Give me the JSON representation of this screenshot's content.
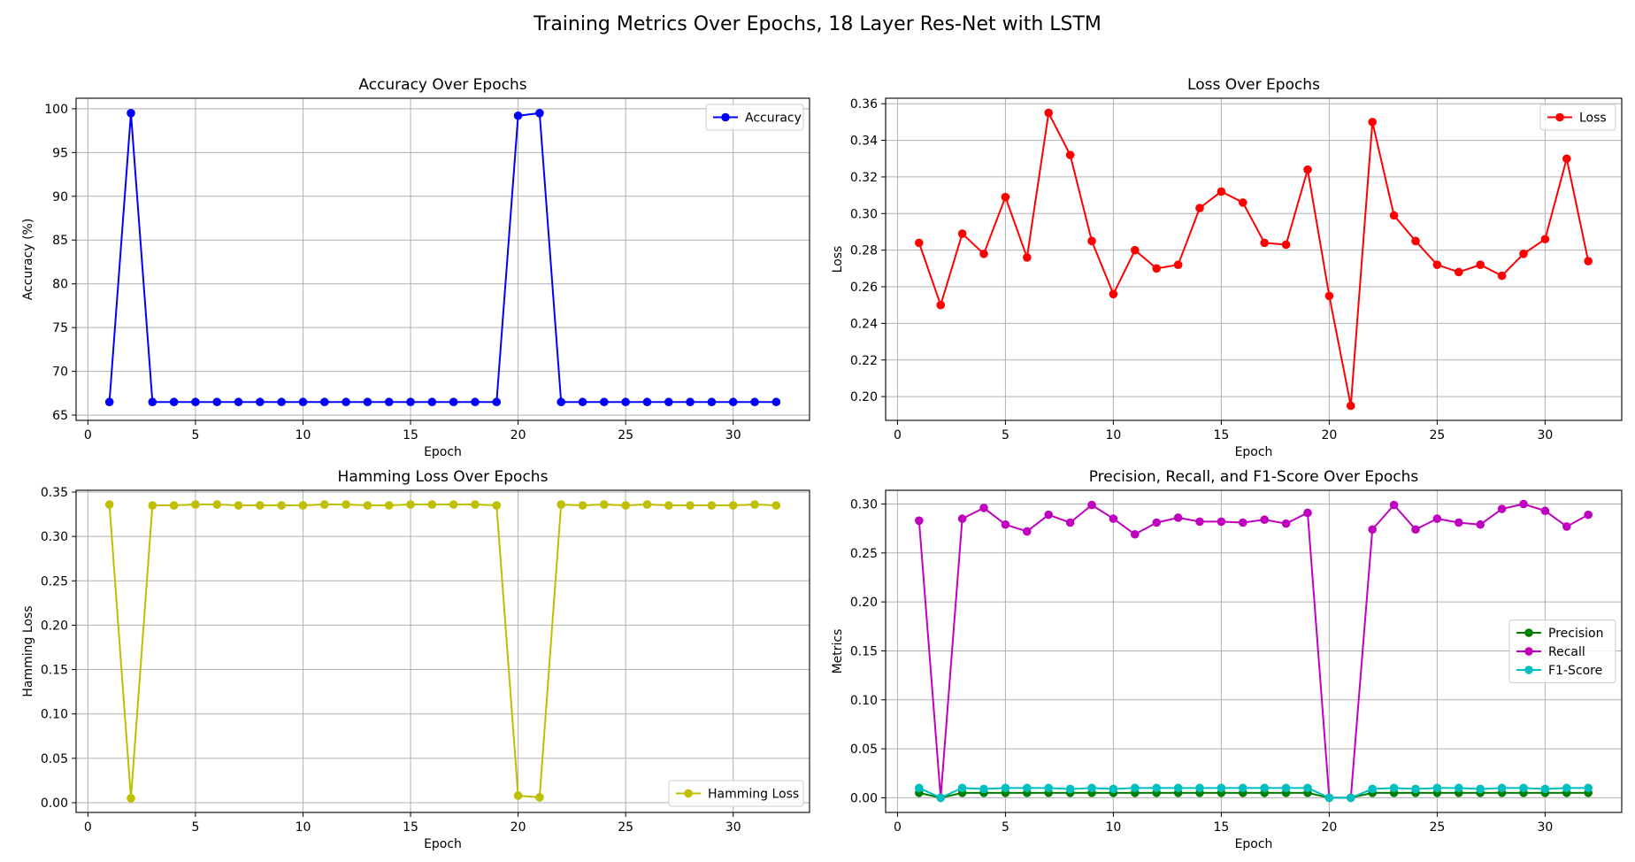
{
  "figure_title": "Training Metrics Over Epochs, 18 Layer Res-Net with LSTM",
  "chart_data": [
    {
      "type": "line",
      "title": "Accuracy Over Epochs",
      "xlabel": "Epoch",
      "ylabel": "Accuracy (%)",
      "xlim": [
        -0.55,
        33.55
      ],
      "ylim": [
        64.4,
        101.2
      ],
      "xticks": [
        0,
        5,
        10,
        15,
        20,
        25,
        30
      ],
      "yticks": [
        65,
        70,
        75,
        80,
        85,
        90,
        95,
        100
      ],
      "ytick_labels": [
        "65",
        "70",
        "75",
        "80",
        "85",
        "90",
        "95",
        "100"
      ],
      "grid": true,
      "legend_position": "upper right",
      "x": [
        1,
        2,
        3,
        4,
        5,
        6,
        7,
        8,
        9,
        10,
        11,
        12,
        13,
        14,
        15,
        16,
        17,
        18,
        19,
        20,
        21,
        22,
        23,
        24,
        25,
        26,
        27,
        28,
        29,
        30,
        31,
        32
      ],
      "series": [
        {
          "name": "Accuracy",
          "color": "#0000ff",
          "values": [
            66.5,
            99.5,
            66.5,
            66.5,
            66.5,
            66.5,
            66.5,
            66.5,
            66.5,
            66.5,
            66.5,
            66.5,
            66.5,
            66.5,
            66.5,
            66.5,
            66.5,
            66.5,
            66.5,
            99.2,
            99.5,
            66.5,
            66.5,
            66.5,
            66.5,
            66.5,
            66.5,
            66.5,
            66.5,
            66.5,
            66.5,
            66.5
          ]
        }
      ]
    },
    {
      "type": "line",
      "title": "Loss Over Epochs",
      "xlabel": "Epoch",
      "ylabel": "Loss",
      "xlim": [
        -0.55,
        33.55
      ],
      "ylim": [
        0.187,
        0.363
      ],
      "xticks": [
        0,
        5,
        10,
        15,
        20,
        25,
        30
      ],
      "yticks": [
        0.2,
        0.22,
        0.24,
        0.26,
        0.28,
        0.3,
        0.32,
        0.34,
        0.36
      ],
      "ytick_labels": [
        "0.20",
        "0.22",
        "0.24",
        "0.26",
        "0.28",
        "0.30",
        "0.32",
        "0.34",
        "0.36"
      ],
      "grid": true,
      "legend_position": "upper right",
      "x": [
        1,
        2,
        3,
        4,
        5,
        6,
        7,
        8,
        9,
        10,
        11,
        12,
        13,
        14,
        15,
        16,
        17,
        18,
        19,
        20,
        21,
        22,
        23,
        24,
        25,
        26,
        27,
        28,
        29,
        30,
        31,
        32
      ],
      "series": [
        {
          "name": "Loss",
          "color": "#ff0000",
          "values": [
            0.284,
            0.25,
            0.289,
            0.278,
            0.309,
            0.276,
            0.355,
            0.332,
            0.285,
            0.256,
            0.28,
            0.27,
            0.272,
            0.303,
            0.312,
            0.306,
            0.284,
            0.283,
            0.324,
            0.255,
            0.195,
            0.35,
            0.299,
            0.285,
            0.272,
            0.268,
            0.272,
            0.266,
            0.278,
            0.286,
            0.33,
            0.274
          ]
        }
      ]
    },
    {
      "type": "line",
      "title": "Hamming Loss Over Epochs",
      "xlabel": "Epoch",
      "ylabel": "Hamming Loss",
      "xlim": [
        -0.55,
        33.55
      ],
      "ylim": [
        -0.011,
        0.352
      ],
      "xticks": [
        0,
        5,
        10,
        15,
        20,
        25,
        30
      ],
      "yticks": [
        0.0,
        0.05,
        0.1,
        0.15,
        0.2,
        0.25,
        0.3,
        0.35
      ],
      "ytick_labels": [
        "0.00",
        "0.05",
        "0.10",
        "0.15",
        "0.20",
        "0.25",
        "0.30",
        "0.35"
      ],
      "grid": true,
      "legend_position": "lower right",
      "x": [
        1,
        2,
        3,
        4,
        5,
        6,
        7,
        8,
        9,
        10,
        11,
        12,
        13,
        14,
        15,
        16,
        17,
        18,
        19,
        20,
        21,
        22,
        23,
        24,
        25,
        26,
        27,
        28,
        29,
        30,
        31,
        32
      ],
      "series": [
        {
          "name": "Hamming Loss",
          "color": "#bfbf00",
          "values": [
            0.336,
            0.005,
            0.335,
            0.335,
            0.336,
            0.336,
            0.335,
            0.335,
            0.335,
            0.335,
            0.336,
            0.336,
            0.335,
            0.335,
            0.336,
            0.336,
            0.336,
            0.336,
            0.335,
            0.008,
            0.006,
            0.336,
            0.335,
            0.336,
            0.335,
            0.336,
            0.335,
            0.335,
            0.335,
            0.335,
            0.336,
            0.335
          ]
        }
      ]
    },
    {
      "type": "line",
      "title": "Precision, Recall, and F1-Score Over Epochs",
      "xlabel": "Epoch",
      "ylabel": "Metrics",
      "xlim": [
        -0.55,
        33.55
      ],
      "ylim": [
        -0.015,
        0.314
      ],
      "xticks": [
        0,
        5,
        10,
        15,
        20,
        25,
        30
      ],
      "yticks": [
        0.0,
        0.05,
        0.1,
        0.15,
        0.2,
        0.25,
        0.3
      ],
      "ytick_labels": [
        "0.00",
        "0.05",
        "0.10",
        "0.15",
        "0.20",
        "0.25",
        "0.30"
      ],
      "grid": true,
      "legend_position": "center right",
      "x": [
        1,
        2,
        3,
        4,
        5,
        6,
        7,
        8,
        9,
        10,
        11,
        12,
        13,
        14,
        15,
        16,
        17,
        18,
        19,
        20,
        21,
        22,
        23,
        24,
        25,
        26,
        27,
        28,
        29,
        30,
        31,
        32
      ],
      "series": [
        {
          "name": "Precision",
          "color": "#008000",
          "values": [
            0.005,
            0.0,
            0.005,
            0.005,
            0.005,
            0.005,
            0.005,
            0.005,
            0.005,
            0.005,
            0.005,
            0.005,
            0.005,
            0.005,
            0.005,
            0.005,
            0.005,
            0.005,
            0.005,
            0.0,
            0.0,
            0.005,
            0.005,
            0.005,
            0.005,
            0.005,
            0.005,
            0.005,
            0.005,
            0.005,
            0.005,
            0.005
          ]
        },
        {
          "name": "Recall",
          "color": "#bf00bf",
          "values": [
            0.283,
            0.0,
            0.285,
            0.296,
            0.279,
            0.272,
            0.289,
            0.281,
            0.299,
            0.285,
            0.269,
            0.281,
            0.286,
            0.282,
            0.282,
            0.281,
            0.284,
            0.28,
            0.291,
            0.0,
            0.0,
            0.274,
            0.299,
            0.274,
            0.285,
            0.281,
            0.279,
            0.295,
            0.3,
            0.293,
            0.277,
            0.289
          ]
        },
        {
          "name": "F1-Score",
          "color": "#00bfbf",
          "values": [
            0.01,
            0.0,
            0.01,
            0.009,
            0.01,
            0.01,
            0.01,
            0.009,
            0.01,
            0.009,
            0.01,
            0.01,
            0.01,
            0.01,
            0.01,
            0.01,
            0.01,
            0.01,
            0.01,
            0.0,
            0.0,
            0.009,
            0.01,
            0.009,
            0.01,
            0.01,
            0.009,
            0.01,
            0.01,
            0.009,
            0.01,
            0.01
          ]
        }
      ]
    }
  ]
}
